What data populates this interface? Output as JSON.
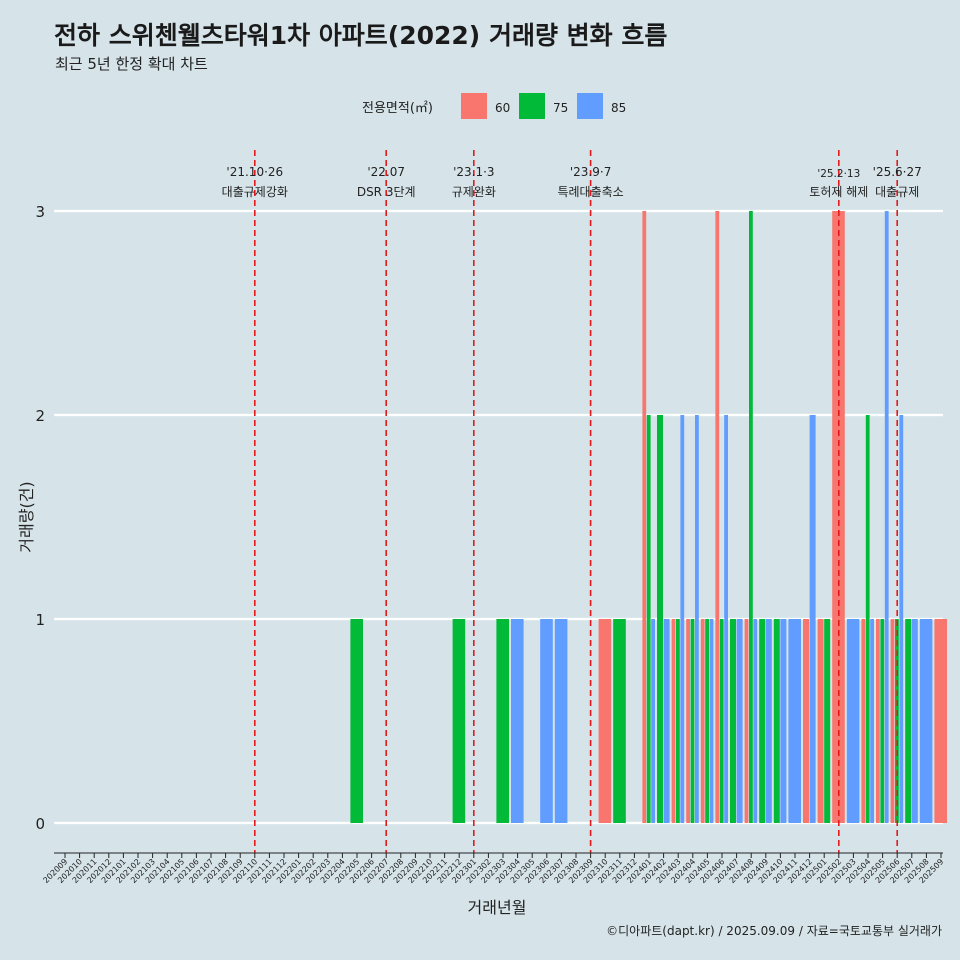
{
  "header": {
    "title": "전하 스위첸웰츠타워1차 아파트(2022) 거래량 변화 흐름",
    "subtitle": "최근 5년 한정 확대 차트"
  },
  "caption": "©디아파트(dapt.kr) / 2025.09.09 / 자료=국토교통부 실거래가",
  "chart_data": {
    "type": "bar",
    "xlabel": "거래년월",
    "ylabel": "거래량(건)",
    "ylim": [
      0,
      3
    ],
    "yticks": [
      0,
      1,
      2,
      3
    ],
    "grid": true,
    "legend": {
      "title": "전용면적(㎡)",
      "position": "top"
    },
    "categories": [
      "202009",
      "202010",
      "202011",
      "202012",
      "202101",
      "202102",
      "202103",
      "202104",
      "202105",
      "202106",
      "202107",
      "202108",
      "202109",
      "202110",
      "202111",
      "202112",
      "202201",
      "202202",
      "202203",
      "202204",
      "202205",
      "202206",
      "202207",
      "202208",
      "202209",
      "202210",
      "202211",
      "202212",
      "202301",
      "202302",
      "202303",
      "202304",
      "202305",
      "202306",
      "202307",
      "202308",
      "202309",
      "202310",
      "202311",
      "202312",
      "202401",
      "202402",
      "202403",
      "202404",
      "202405",
      "202406",
      "202407",
      "202408",
      "202409",
      "202410",
      "202411",
      "202412",
      "202501",
      "202502",
      "202503",
      "202504",
      "202505",
      "202506",
      "202507",
      "202508",
      "202509"
    ],
    "series": [
      {
        "name": "60",
        "color": "#f8766d",
        "values": [
          0,
          0,
          0,
          0,
          0,
          0,
          0,
          0,
          0,
          0,
          0,
          0,
          0,
          0,
          0,
          0,
          0,
          0,
          0,
          0,
          0,
          0,
          0,
          0,
          0,
          0,
          0,
          0,
          0,
          0,
          0,
          0,
          0,
          0,
          0,
          0,
          0,
          1,
          0,
          0,
          3,
          0,
          1,
          1,
          1,
          3,
          0,
          1,
          0,
          0,
          0,
          1,
          1,
          3,
          0,
          1,
          1,
          1,
          0,
          0,
          1
        ]
      },
      {
        "name": "75",
        "color": "#00ba38",
        "values": [
          0,
          0,
          0,
          0,
          0,
          0,
          0,
          0,
          0,
          0,
          0,
          0,
          0,
          0,
          0,
          0,
          0,
          0,
          0,
          0,
          1,
          0,
          0,
          0,
          0,
          0,
          0,
          1,
          0,
          0,
          1,
          0,
          0,
          0,
          0,
          0,
          0,
          0,
          1,
          0,
          2,
          2,
          1,
          1,
          1,
          1,
          1,
          3,
          1,
          1,
          0,
          0,
          1,
          0,
          0,
          2,
          1,
          1,
          1,
          0,
          0
        ]
      },
      {
        "name": "85",
        "color": "#619cff",
        "values": [
          0,
          0,
          0,
          0,
          0,
          0,
          0,
          0,
          0,
          0,
          0,
          0,
          0,
          0,
          0,
          0,
          0,
          0,
          0,
          0,
          0,
          0,
          0,
          0,
          0,
          0,
          0,
          0,
          0,
          0,
          0,
          1,
          0,
          1,
          1,
          0,
          0,
          0,
          0,
          0,
          1,
          1,
          2,
          2,
          1,
          2,
          1,
          1,
          1,
          1,
          1,
          2,
          0,
          0,
          1,
          1,
          3,
          2,
          1,
          1,
          0
        ]
      }
    ],
    "annotations": [
      {
        "x": "202110",
        "date": "'21.10·26",
        "label": "대출규제강화"
      },
      {
        "x": "202207",
        "date": "'22.07",
        "label": "DSR 3단계"
      },
      {
        "x": "202301",
        "date": "'23.1·3",
        "label": "규제완화"
      },
      {
        "x": "202309",
        "date": "'23.9·7",
        "label": "특례대출축소"
      },
      {
        "x": "202502",
        "date": "'25.2·13",
        "label": "토허제 해제"
      },
      {
        "x": "202506",
        "date": "'25.6·27",
        "label": "대출규제"
      }
    ]
  }
}
